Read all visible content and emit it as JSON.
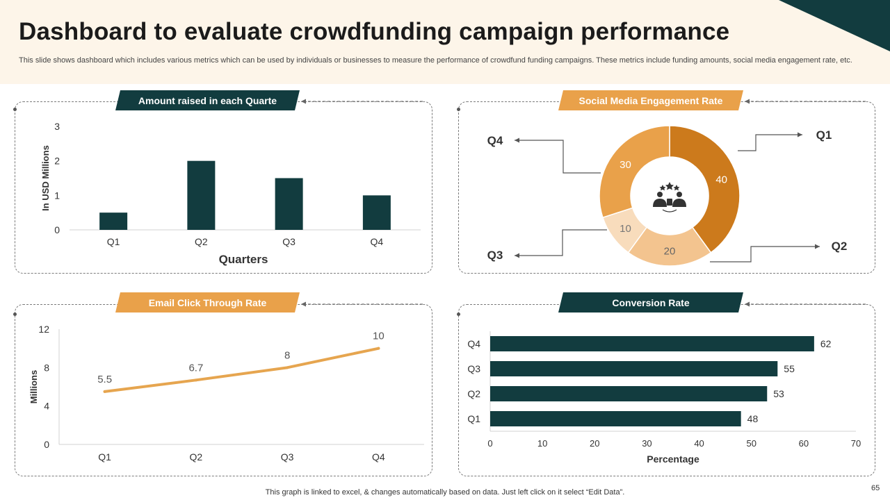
{
  "slide": {
    "title": "Dashboard to evaluate crowdfunding campaign performance",
    "subtitle": "This slide shows dashboard which includes various metrics which can be used by individuals or businesses to measure the performance of crowdfund funding campaigns. These metrics include  funding amounts, social media engagement rate, etc.",
    "footnote": "This graph is linked to excel, & changes automatically based on data. Just left click on it select “Edit Data”.",
    "page_number": "65"
  },
  "colors": {
    "dark_teal": "#123c3f",
    "orange": "#e9a14a",
    "line_orange": "#e6a54f",
    "header_bg": "#fdf5e9",
    "pie_q1": "#cc7a1c",
    "pie_q2": "#f3c48f",
    "pie_q3": "#f8dcbc",
    "pie_q4": "#e9a14a"
  },
  "panels": {
    "amount": {
      "banner": "Amount raised in each Quarte"
    },
    "social": {
      "banner": "Social Media Engagement Rate",
      "center_icon": "audience-rating-icon"
    },
    "email": {
      "banner": "Email Click Through Rate"
    },
    "conversion": {
      "banner": "Conversion Rate"
    }
  },
  "chart_data": [
    {
      "id": "amount",
      "type": "bar",
      "categories": [
        "Q1",
        "Q2",
        "Q3",
        "Q4"
      ],
      "values": [
        0.5,
        2,
        1.5,
        1
      ],
      "xlabel": "Quarters",
      "ylabel": "In USD Millions",
      "ylim": [
        0,
        3
      ],
      "yticks": [
        0,
        1,
        2,
        3
      ]
    },
    {
      "id": "social",
      "type": "pie",
      "style": "donut",
      "labels": [
        "Q1",
        "Q2",
        "Q3",
        "Q4"
      ],
      "values": [
        40,
        20,
        10,
        30
      ]
    },
    {
      "id": "email",
      "type": "line",
      "categories": [
        "Q1",
        "Q2",
        "Q3",
        "Q4"
      ],
      "values": [
        5.5,
        6.7,
        8,
        10
      ],
      "ylabel": "Millions",
      "ylim": [
        0,
        12
      ],
      "yticks": [
        0,
        4,
        8,
        12
      ]
    },
    {
      "id": "conversion",
      "type": "bar",
      "orientation": "horizontal",
      "categories": [
        "Q1",
        "Q2",
        "Q3",
        "Q4"
      ],
      "values": [
        48,
        53,
        55,
        62
      ],
      "xlabel": "Percentage",
      "xlim": [
        0,
        70
      ],
      "xticks": [
        0,
        10,
        20,
        30,
        40,
        50,
        60,
        70
      ]
    }
  ]
}
